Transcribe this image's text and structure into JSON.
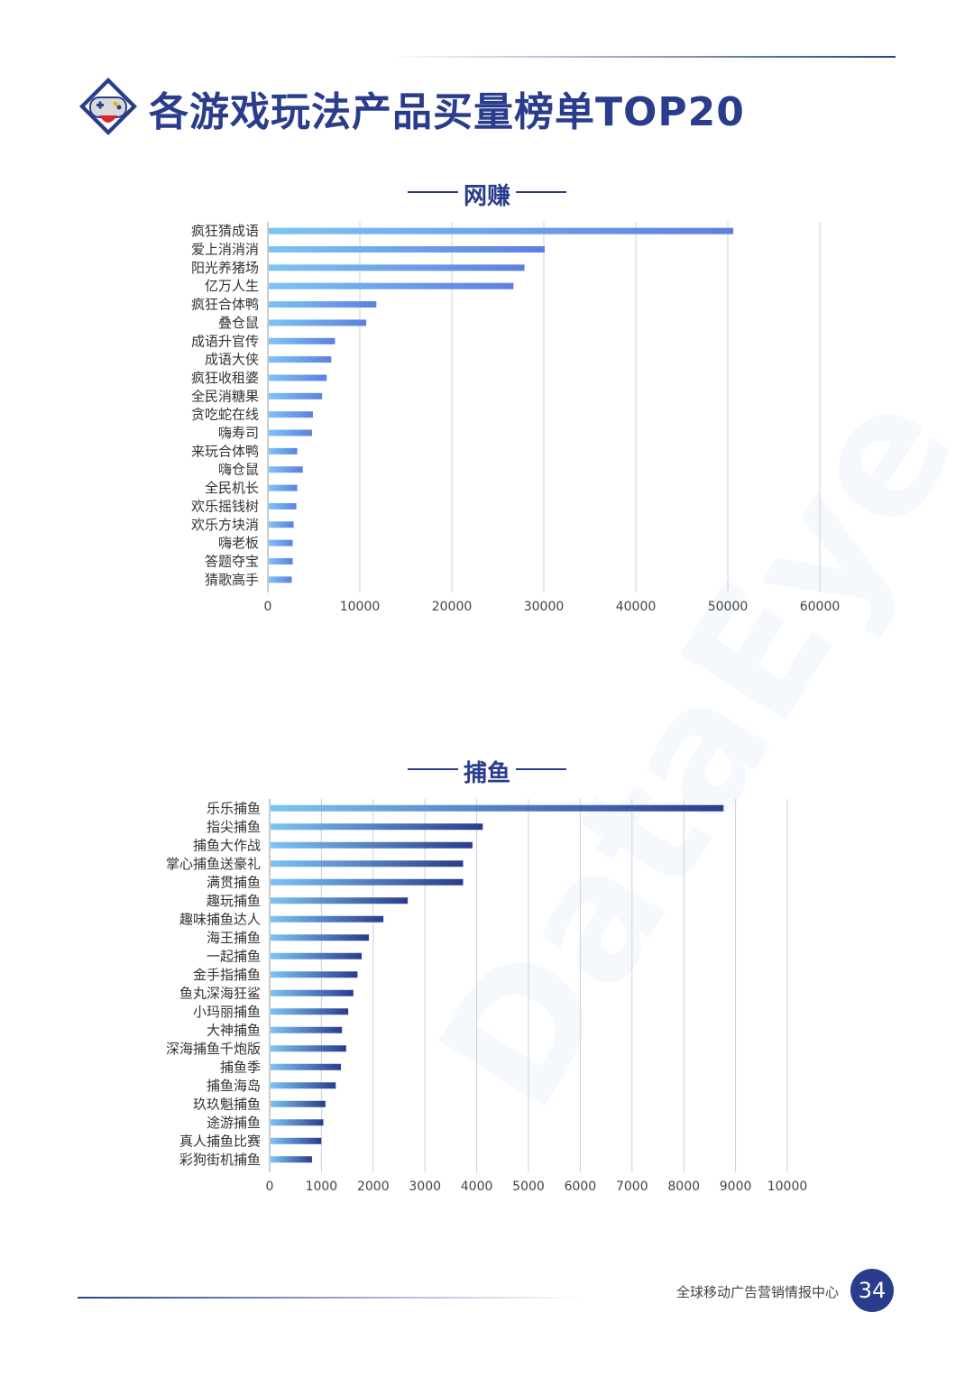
{
  "header": {
    "title": "各游戏玩法产品买量榜单TOP20",
    "logo_icon": "gamepad-icon"
  },
  "watermark": "DataEye",
  "footer": {
    "text": "全球移动广告营销情报中心",
    "page_number": "34"
  },
  "colors": {
    "title": "#2a3c8c",
    "bar_light": "#7cc4f5",
    "bar_mid": "#5e7fe0",
    "bar_dark": "#2a3c8c",
    "grid": "#d0d0d0"
  },
  "chart_data": [
    {
      "type": "bar",
      "orientation": "horizontal",
      "title": "网赚",
      "categories": [
        "疯狂猜成语",
        "爱上消消消",
        "阳光养猪场",
        "亿万人生",
        "疯狂合体鸭",
        "叠仓鼠",
        "成语升官传",
        "成语大侠",
        "疯狂收租婆",
        "全民消糖果",
        "贪吃蛇在线",
        "嗨寿司",
        "来玩合体鸭",
        "嗨仓鼠",
        "全民机长",
        "欢乐摇钱树",
        "欢乐方块消",
        "嗨老板",
        "答题夺宝",
        "猜歌高手"
      ],
      "values": [
        50500,
        30000,
        27800,
        26600,
        11700,
        10600,
        7200,
        6800,
        6300,
        5800,
        4800,
        4700,
        3100,
        3700,
        3100,
        3000,
        2700,
        2600,
        2600,
        2500
      ],
      "xlim": [
        0,
        60000
      ],
      "xticks": [
        "0",
        "10000",
        "20000",
        "30000",
        "40000",
        "50000",
        "60000"
      ],
      "grid": true
    },
    {
      "type": "bar",
      "orientation": "horizontal",
      "title": "捕鱼",
      "categories": [
        "乐乐捕鱼",
        "指尖捕鱼",
        "捕鱼大作战",
        "掌心捕鱼送豪礼",
        "满贯捕鱼",
        "趣玩捕鱼",
        "趣味捕鱼达人",
        "海王捕鱼",
        "一起捕鱼",
        "金手指捕鱼",
        "鱼丸深海狂鲨",
        "小玛丽捕鱼",
        "大神捕鱼",
        "深海捕鱼千炮版",
        "捕鱼季",
        "捕鱼海岛",
        "玖玖魁捕鱼",
        "途游捕鱼",
        "真人捕鱼比赛",
        "彩狗街机捕鱼"
      ],
      "values": [
        8750,
        4100,
        3900,
        3720,
        3720,
        2650,
        2180,
        1900,
        1760,
        1680,
        1600,
        1500,
        1380,
        1460,
        1360,
        1260,
        1060,
        1020,
        980,
        800
      ],
      "xlim": [
        0,
        10000
      ],
      "xticks": [
        "0",
        "1000",
        "2000",
        "3000",
        "4000",
        "5000",
        "6000",
        "7000",
        "8000",
        "9000",
        "10000"
      ],
      "grid": true
    }
  ]
}
